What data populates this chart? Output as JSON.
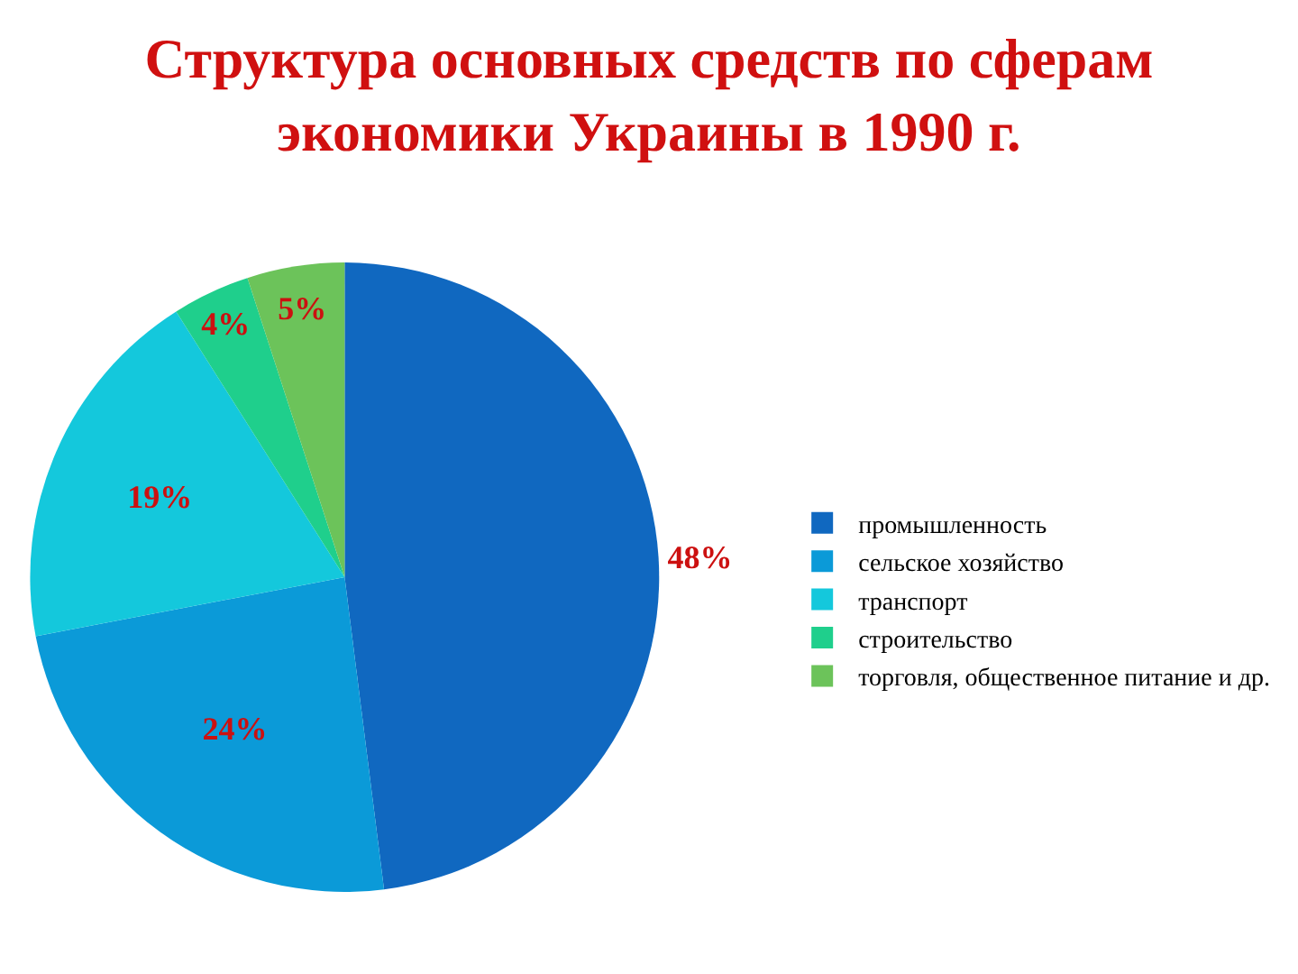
{
  "chart_data": {
    "type": "pie",
    "title": "Структура основных средств по сферам\nэкономики Украины в 1990 г.",
    "categories": [
      "промышленность",
      "сельское хозяйство",
      "транспорт",
      "строительство",
      "торговля, общественное питание и др."
    ],
    "values": [
      48,
      24,
      19,
      4,
      5
    ],
    "colors": [
      "#1068c0",
      "#0b9ad8",
      "#14c8dc",
      "#1fcf8c",
      "#6cc35a"
    ],
    "value_labels": [
      "48%",
      "24%",
      "19%",
      "4%",
      "5%"
    ],
    "legend": "right"
  }
}
